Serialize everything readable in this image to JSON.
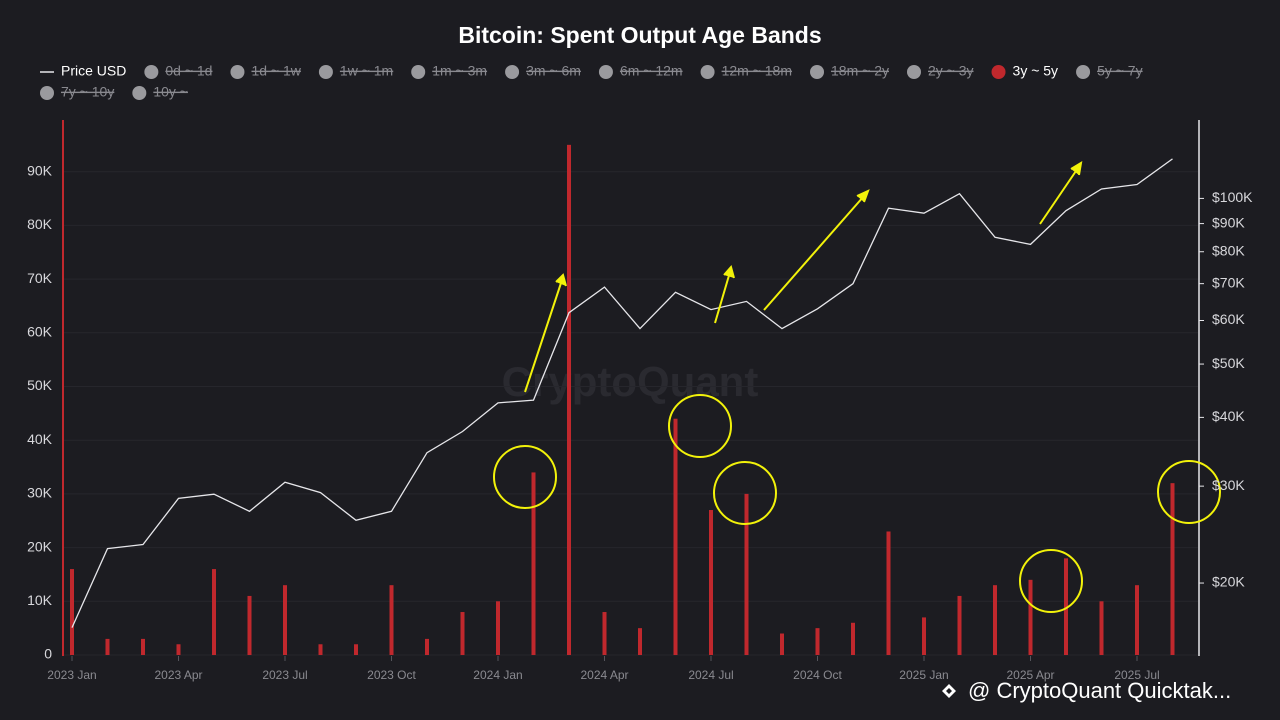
{
  "chart_data": {
    "type": "bar",
    "title": "Bitcoin: Spent Output Age Bands",
    "categories": [
      "2023 Jan",
      null,
      null,
      "2023 Apr",
      null,
      null,
      "2023 Jul",
      null,
      null,
      "2023 Oct",
      null,
      null,
      "2024 Jan",
      null,
      null,
      "2024 Apr",
      null,
      null,
      "2024 Jul",
      null,
      null,
      "2024 Oct",
      null,
      null,
      "2025 Jan",
      null,
      null,
      "2025 Apr",
      null,
      null,
      "2025 Jul",
      null
    ],
    "series": [
      {
        "name": "Price USD",
        "color": "#e6e6ea",
        "type": "line",
        "axis": "y2",
        "values": [
          16600,
          23100,
          23500,
          28500,
          29000,
          27000,
          30500,
          29200,
          26000,
          27000,
          34500,
          37700,
          42500,
          43000,
          62000,
          69000,
          58000,
          67500,
          62800,
          65000,
          58000,
          63000,
          70000,
          96000,
          94000,
          102000,
          85000,
          82500,
          95000,
          104000,
          106000,
          118000
        ]
      },
      {
        "name": "0d ~ 1d",
        "color": "#9a9a9e",
        "hidden": true
      },
      {
        "name": "1d ~ 1w",
        "color": "#9a9a9e",
        "hidden": true
      },
      {
        "name": "1w ~ 1m",
        "color": "#9a9a9e",
        "hidden": true
      },
      {
        "name": "1m ~ 3m",
        "color": "#9a9a9e",
        "hidden": true
      },
      {
        "name": "3m ~ 6m",
        "color": "#9a9a9e",
        "hidden": true
      },
      {
        "name": "6m ~ 12m",
        "color": "#9a9a9e",
        "hidden": true
      },
      {
        "name": "12m ~ 18m",
        "color": "#9a9a9e",
        "hidden": true
      },
      {
        "name": "18m ~ 2y",
        "color": "#9a9a9e",
        "hidden": true
      },
      {
        "name": "2y ~ 3y",
        "color": "#9a9a9e",
        "hidden": true
      },
      {
        "name": "3y ~ 5y",
        "color": "#c0282d",
        "type": "bar",
        "values": [
          16000,
          3000,
          3000,
          2000,
          16000,
          11000,
          13000,
          2000,
          2000,
          13000,
          3000,
          8000,
          10000,
          34000,
          95000,
          8000,
          5000,
          44000,
          27000,
          30000,
          4000,
          5000,
          6000,
          23000,
          7000,
          11000,
          13000,
          14000,
          18000,
          10000,
          13000,
          32000
        ]
      },
      {
        "name": "5y ~ 7y",
        "color": "#9a9a9e",
        "hidden": true
      },
      {
        "name": "7y ~ 10y",
        "color": "#9a9a9e",
        "hidden": true
      },
      {
        "name": "10y ~",
        "color": "#9a9a9e",
        "hidden": true
      }
    ],
    "ylim": [
      0,
      100000
    ],
    "yticks": [
      0,
      {
        "value": 10000,
        "label": "10K"
      },
      {
        "value": 20000,
        "label": "20K"
      },
      {
        "value": 30000,
        "label": "30K"
      },
      {
        "value": 40000,
        "label": "40K"
      },
      {
        "value": 50000,
        "label": "50K"
      },
      {
        "value": 60000,
        "label": "60K"
      },
      {
        "value": 70000,
        "label": "70K"
      },
      {
        "value": 80000,
        "label": "80K"
      },
      {
        "value": 90000,
        "label": "90K"
      }
    ],
    "y2lim": [
      14800,
      140000
    ],
    "y2log": true,
    "y2ticks": [
      {
        "value": 20000,
        "label": "$20K"
      },
      {
        "value": 30000,
        "label": "$30K"
      },
      {
        "value": 40000,
        "label": "$40K"
      },
      {
        "value": 50000,
        "label": "$50K"
      },
      {
        "value": 60000,
        "label": "$60K"
      },
      {
        "value": 70000,
        "label": "$70K"
      },
      {
        "value": 80000,
        "label": "$80K"
      },
      {
        "value": 90000,
        "label": "$90K"
      },
      {
        "value": 100000,
        "label": "$100K"
      }
    ],
    "grid": true,
    "watermark": "CryptoQuant",
    "footer": "@ CryptoQuant Quicktak..."
  }
}
